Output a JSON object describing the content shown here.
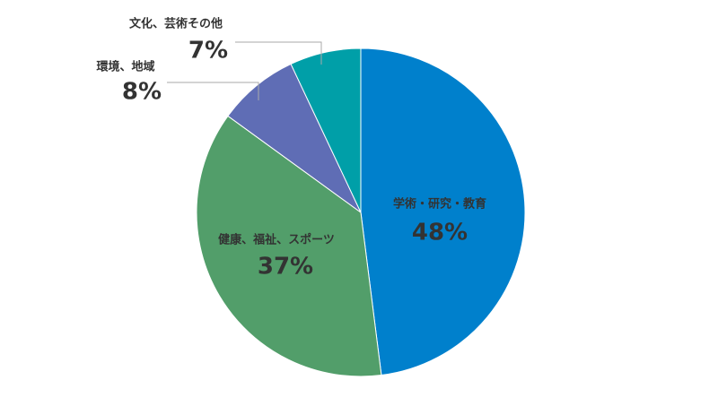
{
  "chart_data": {
    "type": "pie",
    "categories": [
      "学術・研究・教育",
      "健康、福祉、スポーツ",
      "環境、地域",
      "文化、芸術その他"
    ],
    "values": [
      48,
      37,
      8,
      7
    ],
    "value_labels": [
      "48%",
      "37%",
      "8%",
      "7%"
    ],
    "colors": [
      "#0080cc",
      "#529e6a",
      "#5f6db5",
      "#009fa8"
    ]
  }
}
